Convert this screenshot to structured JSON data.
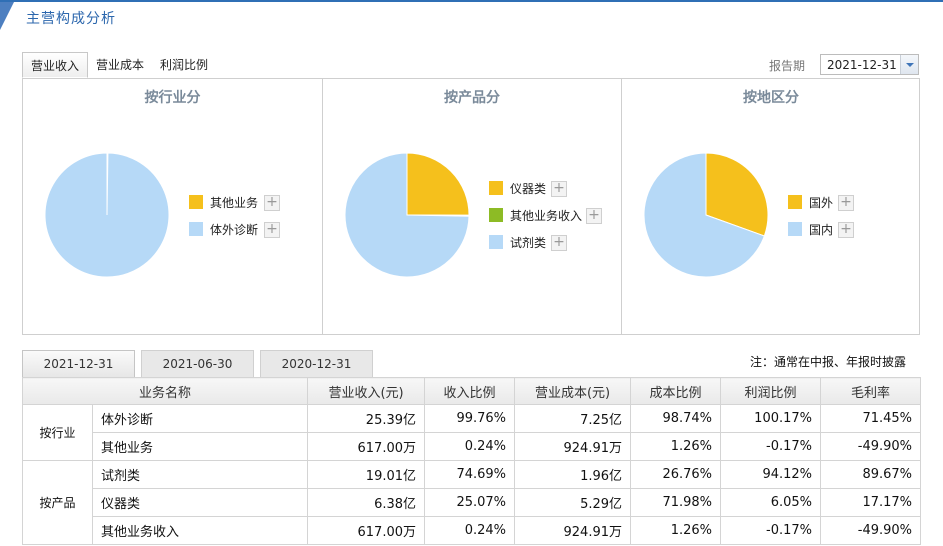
{
  "header": {
    "title": "主营构成分析"
  },
  "tabs": [
    {
      "label": "营业收入"
    },
    {
      "label": "营业成本"
    },
    {
      "label": "利润比例"
    }
  ],
  "report": {
    "label": "报告期",
    "value": "2021-12-31"
  },
  "charts": [
    {
      "title": "按行业分",
      "legend": [
        {
          "label": "其他业务",
          "color": "#f5c01c"
        },
        {
          "label": "体外诊断",
          "color": "#b6d9f7"
        }
      ]
    },
    {
      "title": "按产品分",
      "legend": [
        {
          "label": "仪器类",
          "color": "#f5c01c"
        },
        {
          "label": "其他业务收入",
          "color": "#8dbb25"
        },
        {
          "label": "试剂类",
          "color": "#b6d9f7"
        }
      ]
    },
    {
      "title": "按地区分",
      "legend": [
        {
          "label": "国外",
          "color": "#f5c01c"
        },
        {
          "label": "国内",
          "color": "#b6d9f7"
        }
      ]
    }
  ],
  "chart_data": [
    {
      "type": "pie",
      "title": "按行业分",
      "categories": [
        "其他业务",
        "体外诊断"
      ],
      "values": [
        0.24,
        99.76
      ]
    },
    {
      "type": "pie",
      "title": "按产品分",
      "categories": [
        "仪器类",
        "其他业务收入",
        "试剂类"
      ],
      "values": [
        25.07,
        0.24,
        74.69
      ]
    },
    {
      "type": "pie",
      "title": "按地区分",
      "categories": [
        "国外",
        "国内"
      ],
      "values": [
        30.5,
        69.5
      ]
    }
  ],
  "date_tabs": [
    {
      "label": "2021-12-31"
    },
    {
      "label": "2021-06-30"
    },
    {
      "label": "2020-12-31"
    }
  ],
  "note": "注：通常在中报、年报时披露",
  "table": {
    "headers": [
      "业务名称",
      "营业收入(元)",
      "收入比例",
      "营业成本(元)",
      "成本比例",
      "利润比例",
      "毛利率"
    ],
    "groups": [
      {
        "category": "按行业",
        "rows": [
          [
            "体外诊断",
            "25.39亿",
            "99.76%",
            "7.25亿",
            "98.74%",
            "100.17%",
            "71.45%"
          ],
          [
            "其他业务",
            "617.00万",
            "0.24%",
            "924.91万",
            "1.26%",
            "-0.17%",
            "-49.90%"
          ]
        ]
      },
      {
        "category": "按产品",
        "rows": [
          [
            "试剂类",
            "19.01亿",
            "74.69%",
            "1.96亿",
            "26.76%",
            "94.12%",
            "89.67%"
          ],
          [
            "仪器类",
            "6.38亿",
            "25.07%",
            "5.29亿",
            "71.98%",
            "6.05%",
            "17.17%"
          ],
          [
            "其他业务收入",
            "617.00万",
            "0.24%",
            "924.91万",
            "1.26%",
            "-0.17%",
            "-49.90%"
          ]
        ]
      }
    ]
  }
}
